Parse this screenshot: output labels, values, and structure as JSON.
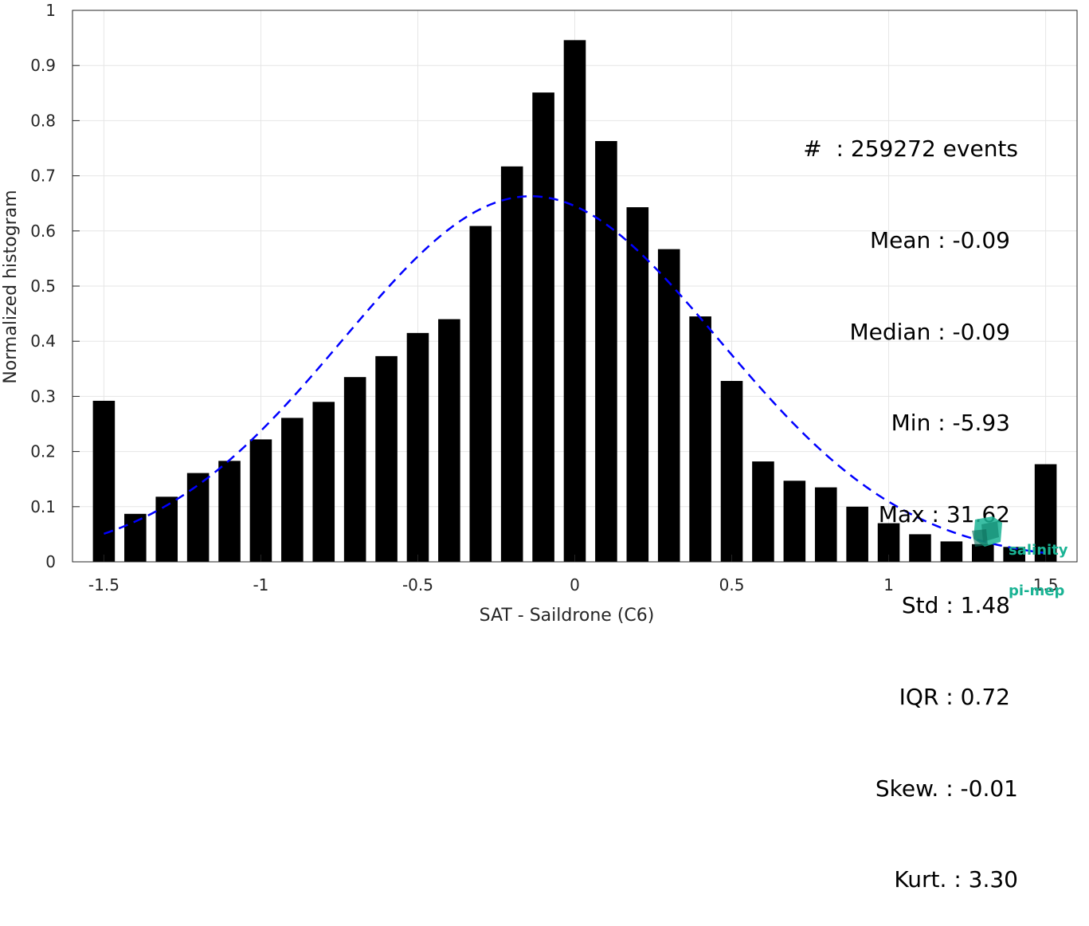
{
  "chart_data": {
    "type": "bar",
    "xlabel": "SAT - Saildrone (C6)",
    "ylabel": "Normalized histogram",
    "xlim": [
      -1.6,
      1.6
    ],
    "ylim": [
      0,
      1
    ],
    "xticks": [
      -1.5,
      -1,
      -0.5,
      0,
      0.5,
      1,
      1.5
    ],
    "xtick_labels": [
      "-1.5",
      "-1",
      "-0.5",
      "0",
      "0.5",
      "1",
      "1.5"
    ],
    "yticks": [
      0,
      0.1,
      0.2,
      0.3,
      0.4,
      0.5,
      0.6,
      0.7,
      0.8,
      0.9,
      1
    ],
    "ytick_labels": [
      "0",
      "0.1",
      "0.2",
      "0.3",
      "0.4",
      "0.5",
      "0.6",
      "0.7",
      "0.8",
      "0.9",
      "1"
    ],
    "grid": true,
    "bar_color": "#000000",
    "curve_color": "#0000ff",
    "x": [
      -1.5,
      -1.4,
      -1.3,
      -1.2,
      -1.1,
      -1.0,
      -0.9,
      -0.8,
      -0.7,
      -0.6,
      -0.5,
      -0.4,
      -0.3,
      -0.2,
      -0.1,
      0.0,
      0.1,
      0.2,
      0.3,
      0.4,
      0.5,
      0.6,
      0.7,
      0.8,
      0.9,
      1.0,
      1.1,
      1.2,
      1.3,
      1.4,
      1.5
    ],
    "values": [
      0.292,
      0.087,
      0.118,
      0.161,
      0.183,
      0.222,
      0.261,
      0.29,
      0.335,
      0.373,
      0.415,
      0.44,
      0.609,
      0.717,
      0.851,
      0.946,
      0.763,
      0.643,
      0.567,
      0.445,
      0.328,
      0.182,
      0.147,
      0.135,
      0.1,
      0.07,
      0.05,
      0.037,
      0.032,
      0.027,
      0.177
    ],
    "fit_curve": {
      "style": "dashed",
      "mean": -0.14,
      "std": 0.6,
      "peak": 0.663,
      "x_range": [
        -1.5,
        1.5
      ]
    },
    "stats_lines": [
      "#  : 259272 events",
      "Mean : -0.09",
      "Median : -0.09",
      "Min : -5.93",
      "Max : 31.62",
      "Std : 1.48",
      "IQR : 0.72",
      "Skew. : -0.01",
      "Kurt. : 3.30"
    ]
  },
  "logo": {
    "line1": "salinity",
    "line2": "pi-mep",
    "color": "#1ab394"
  }
}
